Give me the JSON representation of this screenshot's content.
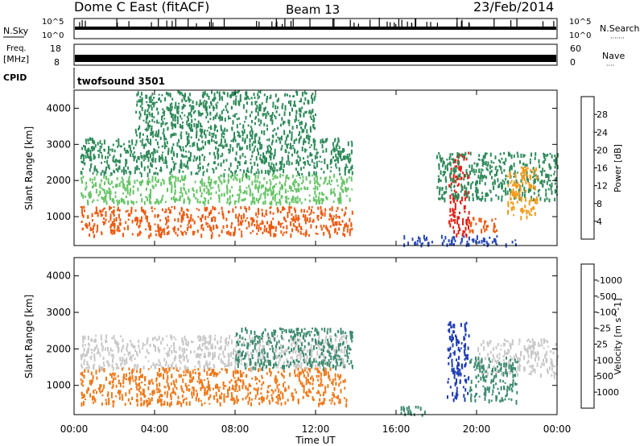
{
  "header": {
    "station": "Dome C East (fitACF)",
    "beam": "Beam 13",
    "date": "23/Feb/2014"
  },
  "aux": {
    "nsky_label": "N.Sky",
    "nsky_top": "10^5",
    "nsky_bottom": "10^0",
    "nsearch_label": "N.Search",
    "nsearch_legend": "·······",
    "nsearch_top": "10^5",
    "nsearch_bottom": "10^0",
    "freq_label": "Freq.",
    "freq_unit": "[MHz]",
    "freq_top": "18",
    "freq_bottom": "8",
    "nave_label": "Nave",
    "nave_legend": "····",
    "nave_top": "60",
    "nave_bottom": "0",
    "cpid_label": "CPID",
    "cpid_value": "twofsound 3501"
  },
  "chart_data": [
    {
      "type": "heatmap",
      "panel": "power",
      "ylabel": "Slant Range [km]",
      "yticks": [
        "1000",
        "2000",
        "3000",
        "4000"
      ],
      "ylim": [
        200,
        4500
      ],
      "xlim": [
        0,
        24
      ],
      "colorbar": {
        "label": "Power [dB]",
        "ticks": [
          "4",
          "8",
          "12",
          "16",
          "20",
          "24",
          "28"
        ],
        "colors": [
          "#0a14e6",
          "#2848b8",
          "#2e8a5a",
          "#66c466",
          "#e6d21e",
          "#f59a18",
          "#ee5a10",
          "#e21e12"
        ]
      },
      "regions": [
        {
          "x0": 0.3,
          "x1": 13.8,
          "r0": 500,
          "r1": 1300,
          "v": 27
        },
        {
          "x0": 0.3,
          "x1": 13.8,
          "r0": 1400,
          "r1": 2200,
          "v": 14
        },
        {
          "x0": 0.3,
          "x1": 13.8,
          "r0": 2200,
          "r1": 3200,
          "v": 11
        },
        {
          "x0": 3,
          "x1": 12,
          "r0": 3200,
          "r1": 4500,
          "v": 10
        },
        {
          "x0": 16.2,
          "x1": 22,
          "r0": 250,
          "r1": 500,
          "v": 5
        },
        {
          "x0": 18.6,
          "x1": 19.6,
          "r0": 500,
          "r1": 2800,
          "v": 28
        },
        {
          "x0": 18,
          "x1": 24,
          "r0": 1500,
          "r1": 2800,
          "v": 8
        },
        {
          "x0": 21.5,
          "x1": 23,
          "r0": 1000,
          "r1": 2400,
          "v": 22
        },
        {
          "x0": 19.6,
          "x1": 21,
          "r0": 600,
          "r1": 1000,
          "v": 24
        }
      ]
    },
    {
      "type": "heatmap",
      "panel": "velocity",
      "ylabel": "Slant Range [km]",
      "yticks": [
        "1000",
        "2000",
        "3000",
        "4000"
      ],
      "ylim": [
        200,
        4500
      ],
      "xlim": [
        0,
        24
      ],
      "xticks": [
        "00:00",
        "04:00",
        "08:00",
        "12:00",
        "16:00",
        "20:00",
        "00:00"
      ],
      "xlabel": "Time UT",
      "colorbar": {
        "label": "Velocity [m s^-1]",
        "ticks": [
          "1000",
          "500",
          "100",
          "25",
          "-25",
          "-100",
          "-500",
          "-1000"
        ],
        "colors": [
          "#1e3cb4",
          "#2e6aa0",
          "#3c8a6e",
          "#66c446",
          "#c8c8c8",
          "#f0a040",
          "#f07818",
          "#e03214",
          "#e01414"
        ]
      },
      "regions": [
        {
          "x0": 0.3,
          "x1": 13.5,
          "r0": 500,
          "r1": 1500,
          "v": -300
        },
        {
          "x0": 0.3,
          "x1": 13.5,
          "r0": 1500,
          "r1": 2400,
          "v": 0
        },
        {
          "x0": 8,
          "x1": 13.8,
          "r0": 1500,
          "r1": 2600,
          "v": 300
        },
        {
          "x0": 16.2,
          "x1": 17.5,
          "r0": 200,
          "r1": 450,
          "v": 120
        },
        {
          "x0": 18.5,
          "x1": 19.6,
          "r0": 600,
          "r1": 2800,
          "v": 800
        },
        {
          "x0": 20,
          "x1": 24,
          "r0": 1300,
          "r1": 2300,
          "v": 0
        },
        {
          "x0": 19.6,
          "x1": 22,
          "r0": 600,
          "r1": 1800,
          "v": 300
        }
      ]
    }
  ]
}
